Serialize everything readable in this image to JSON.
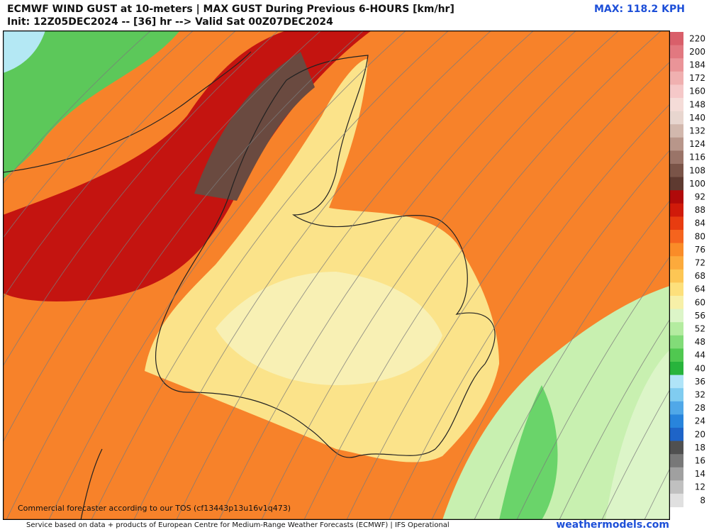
{
  "header": {
    "title": "ECMWF WIND GUST at 10-meters | MAX GUST During Previous 6-HOURS [km/hr]",
    "subtitle": "Init: 12Z05DEC2024 -- [36] hr --> Valid Sat 00Z07DEC2024",
    "max": "MAX: 118.2 KPH"
  },
  "map": {
    "disclaimer": "Commercial forecaster according to our TOS (cf13443p13u16v1q473)"
  },
  "colorbar": {
    "items": [
      {
        "label": 220,
        "color": "#d95f6a"
      },
      {
        "label": 200,
        "color": "#e27880"
      },
      {
        "label": 184,
        "color": "#ea9498"
      },
      {
        "label": 172,
        "color": "#f0b0b0"
      },
      {
        "label": 160,
        "color": "#f5c8c8"
      },
      {
        "label": 148,
        "color": "#f5dcd8"
      },
      {
        "label": 140,
        "color": "#e8d6cf"
      },
      {
        "label": 132,
        "color": "#d2b8ad"
      },
      {
        "label": 124,
        "color": "#b8968a"
      },
      {
        "label": 116,
        "color": "#9a7468"
      },
      {
        "label": 108,
        "color": "#7a5448"
      },
      {
        "label": 100,
        "color": "#5e3a30"
      },
      {
        "label": 92,
        "color": "#b00a0a"
      },
      {
        "label": 88,
        "color": "#d01a0a"
      },
      {
        "label": 84,
        "color": "#e83c10"
      },
      {
        "label": 80,
        "color": "#f5641e"
      },
      {
        "label": 76,
        "color": "#fa8c28"
      },
      {
        "label": 72,
        "color": "#fcaa3c"
      },
      {
        "label": 68,
        "color": "#fdc654"
      },
      {
        "label": 64,
        "color": "#fde07c"
      },
      {
        "label": 60,
        "color": "#f7f0a8"
      },
      {
        "label": 56,
        "color": "#dcf5c8"
      },
      {
        "label": 52,
        "color": "#b4eca0"
      },
      {
        "label": 48,
        "color": "#82dc78"
      },
      {
        "label": 44,
        "color": "#50c850"
      },
      {
        "label": 40,
        "color": "#28b43c"
      },
      {
        "label": 36,
        "color": "#b0e4f8"
      },
      {
        "label": 32,
        "color": "#80ccf0"
      },
      {
        "label": 28,
        "color": "#50a8e8"
      },
      {
        "label": 24,
        "color": "#2884dc"
      },
      {
        "label": 20,
        "color": "#1e64c8"
      },
      {
        "label": 18,
        "color": "#505050"
      },
      {
        "label": 16,
        "color": "#787878"
      },
      {
        "label": 14,
        "color": "#a0a0a0"
      },
      {
        "label": 12,
        "color": "#c0c0c0"
      },
      {
        "label": 8,
        "color": "#e0e0e0"
      }
    ]
  },
  "footer": {
    "credit": "Service based on data + products of European Centre for Medium-Range Weather Forecasts (ECMWF) | IFS Operational",
    "brand": "weathermodels.com"
  }
}
